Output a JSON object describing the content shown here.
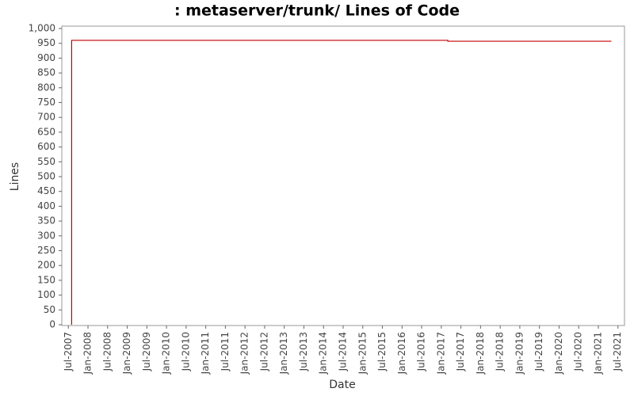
{
  "chart_data": {
    "type": "line",
    "title": ": metaserver/trunk/ Lines of Code",
    "x_label": "Date",
    "y_label": "Lines",
    "x": [
      "2007-08",
      "2007-08",
      "2017-03",
      "2017-03",
      "2021-05"
    ],
    "series": [
      {
        "name": "Lines",
        "color": "#c00000",
        "values": [
          0,
          960,
          960,
          957,
          957
        ]
      }
    ],
    "xlim": [
      "2007-05",
      "2021-09"
    ],
    "xticks": [
      {
        "value": "2007-07",
        "label": "Jul-2007"
      },
      {
        "value": "2008-01",
        "label": "Jan-2008"
      },
      {
        "value": "2008-07",
        "label": "Jul-2008"
      },
      {
        "value": "2009-01",
        "label": "Jan-2009"
      },
      {
        "value": "2009-07",
        "label": "Jul-2009"
      },
      {
        "value": "2010-01",
        "label": "Jan-2010"
      },
      {
        "value": "2010-07",
        "label": "Jul-2010"
      },
      {
        "value": "2011-01",
        "label": "Jan-2011"
      },
      {
        "value": "2011-07",
        "label": "Jul-2011"
      },
      {
        "value": "2012-01",
        "label": "Jan-2012"
      },
      {
        "value": "2012-07",
        "label": "Jul-2012"
      },
      {
        "value": "2013-01",
        "label": "Jan-2013"
      },
      {
        "value": "2013-07",
        "label": "Jul-2013"
      },
      {
        "value": "2014-01",
        "label": "Jan-2014"
      },
      {
        "value": "2014-07",
        "label": "Jul-2014"
      },
      {
        "value": "2015-01",
        "label": "Jan-2015"
      },
      {
        "value": "2015-07",
        "label": "Jul-2015"
      },
      {
        "value": "2016-01",
        "label": "Jan-2016"
      },
      {
        "value": "2016-07",
        "label": "Jul-2016"
      },
      {
        "value": "2017-01",
        "label": "Jan-2017"
      },
      {
        "value": "2017-07",
        "label": "Jul-2017"
      },
      {
        "value": "2018-01",
        "label": "Jan-2018"
      },
      {
        "value": "2018-07",
        "label": "Jul-2018"
      },
      {
        "value": "2019-01",
        "label": "Jan-2019"
      },
      {
        "value": "2019-07",
        "label": "Jul-2019"
      },
      {
        "value": "2020-01",
        "label": "Jan-2020"
      },
      {
        "value": "2020-07",
        "label": "Jul-2020"
      },
      {
        "value": "2021-01",
        "label": "Jan-2021"
      },
      {
        "value": "2021-07",
        "label": "Jul-2021"
      }
    ],
    "ylim": [
      0,
      1000
    ],
    "yticks": [
      0,
      50,
      100,
      150,
      200,
      250,
      300,
      350,
      400,
      450,
      500,
      550,
      600,
      650,
      700,
      750,
      800,
      850,
      900,
      950,
      {
        "value": 1000,
        "label": "1,000"
      }
    ],
    "grid": false
  }
}
